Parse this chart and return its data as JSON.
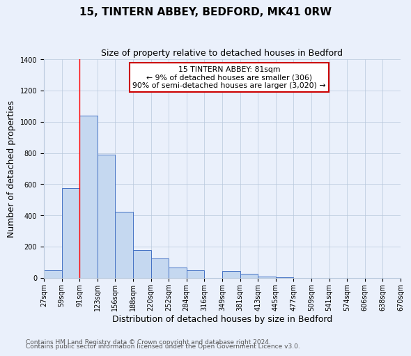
{
  "title": "15, TINTERN ABBEY, BEDFORD, MK41 0RW",
  "subtitle": "Size of property relative to detached houses in Bedford",
  "xlabel": "Distribution of detached houses by size in Bedford",
  "ylabel": "Number of detached properties",
  "bin_labels": [
    "27sqm",
    "59sqm",
    "91sqm",
    "123sqm",
    "156sqm",
    "188sqm",
    "220sqm",
    "252sqm",
    "284sqm",
    "316sqm",
    "349sqm",
    "381sqm",
    "413sqm",
    "445sqm",
    "477sqm",
    "509sqm",
    "541sqm",
    "574sqm",
    "606sqm",
    "638sqm",
    "670sqm"
  ],
  "bar_values": [
    50,
    575,
    1040,
    790,
    425,
    178,
    125,
    65,
    50,
    0,
    45,
    25,
    10,
    5,
    0,
    0,
    0,
    0,
    0,
    0
  ],
  "bar_color": "#c5d8f0",
  "bar_edge_color": "#4472c4",
  "annotation_text_line1": "15 TINTERN ABBEY: 81sqm",
  "annotation_text_line2": "← 9% of detached houses are smaller (306)",
  "annotation_text_line3": "90% of semi-detached houses are larger (3,020) →",
  "annotation_box_color": "#ffffff",
  "annotation_box_edge_color": "#cc0000",
  "red_line_x": 2.0,
  "ylim": [
    0,
    1400
  ],
  "yticks": [
    0,
    200,
    400,
    600,
    800,
    1000,
    1200,
    1400
  ],
  "footer_line1": "Contains HM Land Registry data © Crown copyright and database right 2024.",
  "footer_line2": "Contains public sector information licensed under the Open Government Licence v3.0.",
  "background_color": "#eaf0fb",
  "plot_bg_color": "#eaf0fb",
  "title_fontsize": 11,
  "subtitle_fontsize": 9,
  "axis_label_fontsize": 9,
  "tick_fontsize": 7,
  "footer_fontsize": 6.5,
  "annotation_fontsize": 7.8
}
